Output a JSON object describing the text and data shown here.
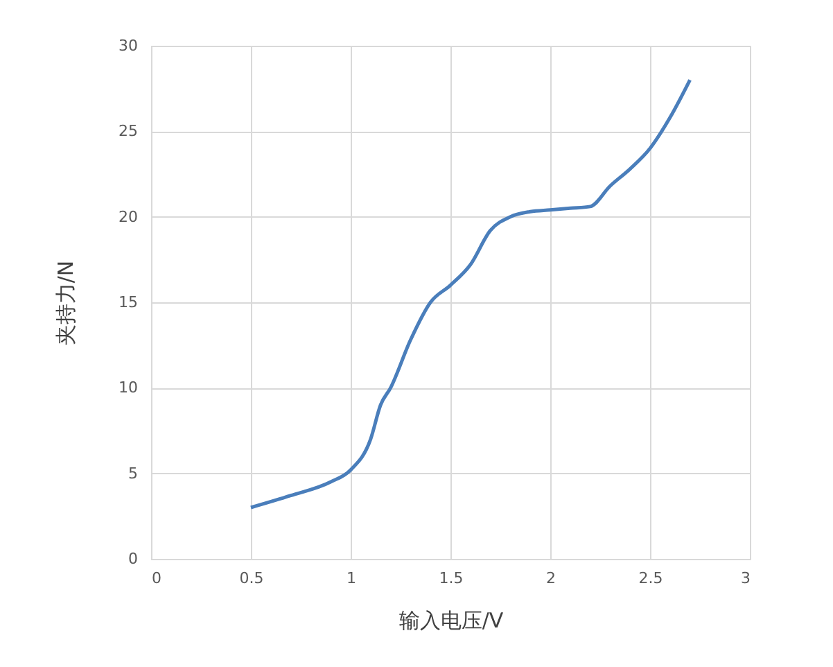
{
  "chart_data": {
    "type": "line",
    "xlabel": "输入电压/V",
    "ylabel": "夹持力/N",
    "x": [
      0.5,
      0.7,
      0.9,
      1.0,
      1.1,
      1.15,
      1.2,
      1.3,
      1.4,
      1.5,
      1.6,
      1.7,
      1.8,
      1.9,
      2.0,
      2.1,
      2.2,
      2.3,
      2.4,
      2.5,
      2.6,
      2.7
    ],
    "series": [
      {
        "color": "#4a7ebb",
        "values": [
          3,
          3.7,
          4.5,
          5.2,
          7,
          9,
          10,
          12.8,
          15,
          16,
          17.2,
          19.2,
          20,
          20.3,
          20.4,
          20.5,
          20.6,
          21.8,
          22.8,
          24,
          25.8,
          28
        ]
      }
    ],
    "xlim": [
      0,
      3
    ],
    "xticks": [
      0,
      0.5,
      1,
      1.5,
      2,
      2.5,
      3
    ],
    "ylim": [
      0,
      30
    ],
    "yticks": [
      0,
      5,
      10,
      15,
      20,
      25,
      30
    ],
    "grid": true,
    "legend": false,
    "marker": "none",
    "line_style": "solid"
  }
}
